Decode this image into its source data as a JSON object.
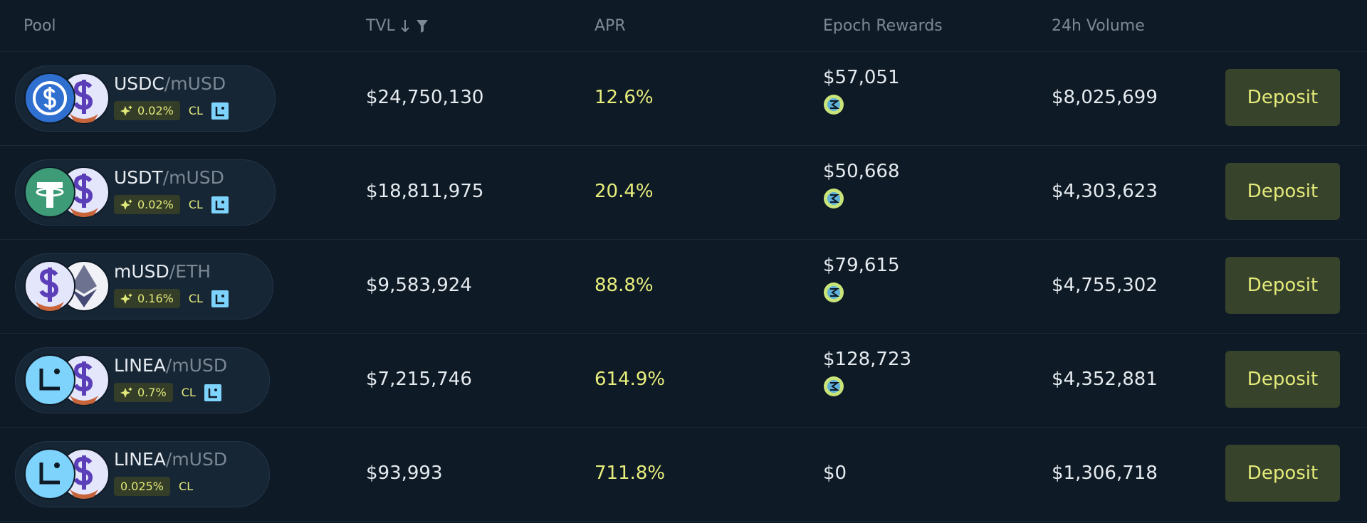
{
  "header": [
    "Pool",
    "TVL",
    "APR",
    "Epoch Rewards",
    "24h Volume"
  ],
  "rows": [
    {
      "base": "USDC",
      "quote": "/mUSD",
      "fee": "0.02%",
      "type": "CL",
      "tvl": "$24,750,130",
      "apr": "12.6%",
      "rewards": "$57,051",
      "volume": "$8,025,699",
      "action": "Deposit"
    },
    {
      "base": "USDT",
      "quote": "/mUSD",
      "fee": "0.02%",
      "type": "CL",
      "tvl": "$18,811,975",
      "apr": "20.4%",
      "rewards": "$50,668",
      "volume": "$4,303,623",
      "action": "Deposit"
    },
    {
      "base": "mUSD",
      "quote": "/ETH",
      "fee": "0.16%",
      "type": "CL",
      "tvl": "$9,583,924",
      "apr": "88.8%",
      "rewards": "$79,615",
      "volume": "$4,755,302",
      "action": "Deposit"
    },
    {
      "base": "LINEA",
      "quote": "/mUSD",
      "fee": "0.7%",
      "type": "CL",
      "tvl": "$7,215,746",
      "apr": "614.9%",
      "rewards": "$128,723",
      "volume": "$4,352,881",
      "action": "Deposit"
    },
    {
      "base": "LINEA",
      "quote": "/mUSD",
      "fee": "0.025%",
      "type": "CL",
      "tvl": "$93,993",
      "apr": "711.8%",
      "rewards": "$0",
      "volume": "$1,306,718",
      "action": "Deposit"
    }
  ]
}
